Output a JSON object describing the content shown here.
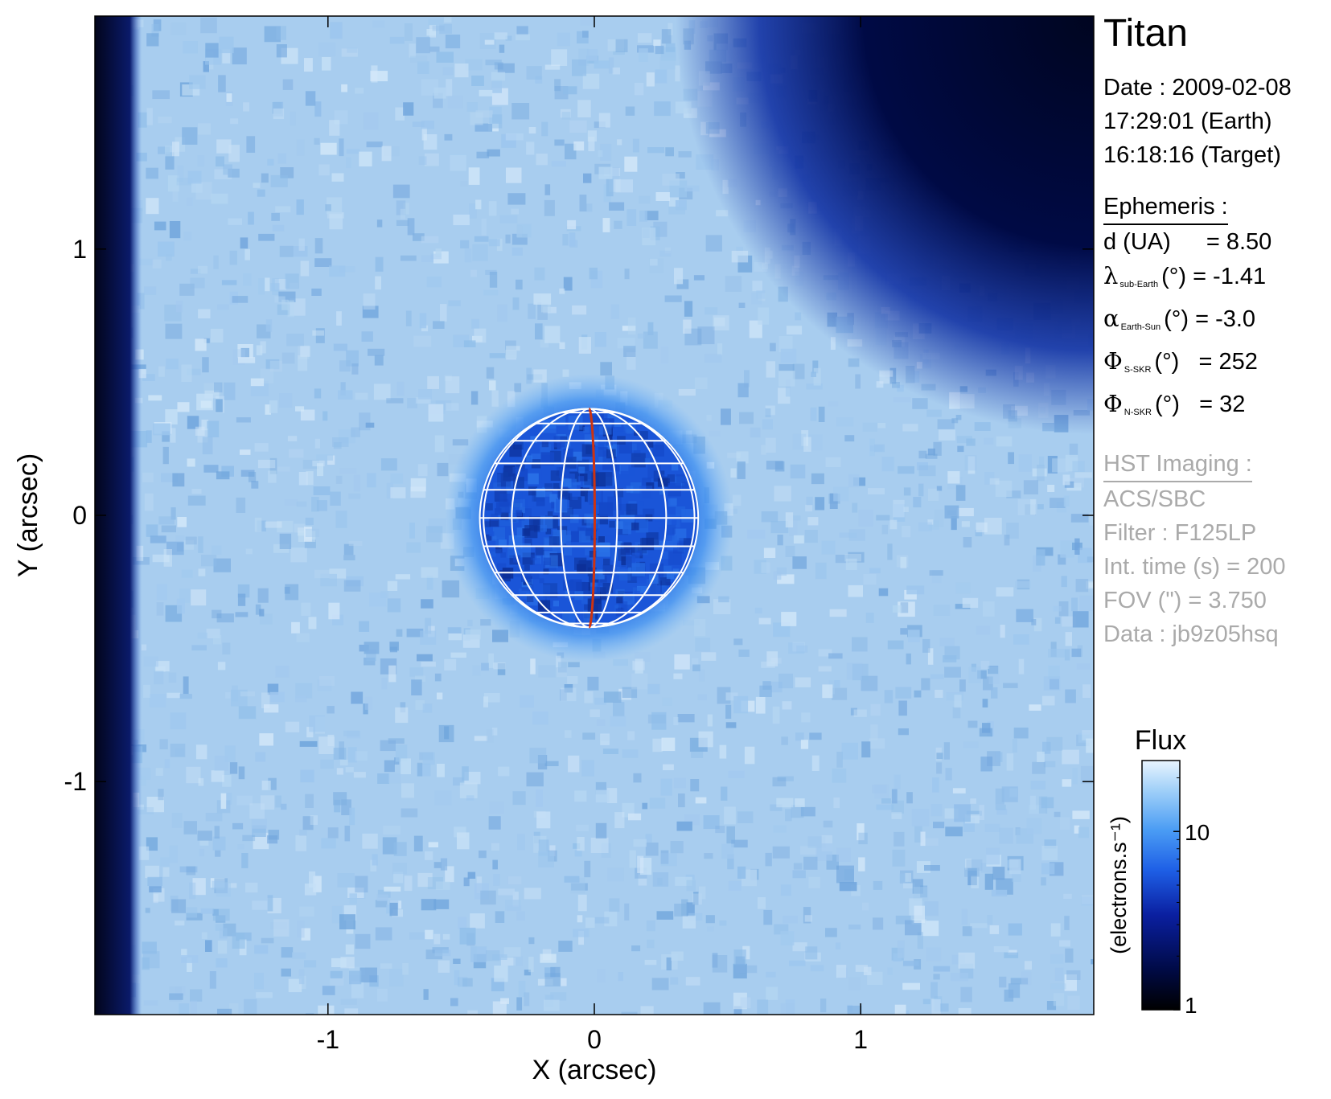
{
  "target": "Titan",
  "date_line": "Date : 2009-02-08",
  "earth_time": "17:29:01 (Earth)",
  "target_time": "16:18:16 (Target)",
  "ephemeris": {
    "heading": "Ephemeris :",
    "d_label": "d (UA)",
    "d_value": "= 8.50",
    "lambda_symbol": "λ",
    "lambda_sub": "sub-Earth",
    "lambda_rest": "(°) = -1.41",
    "alpha_symbol": "α",
    "alpha_sub": "Earth-Sun",
    "alpha_rest": "(°) = -3.0",
    "phi_s_symbol": "Φ",
    "phi_s_sub": "S-SKR",
    "phi_s_rest": "(°)   = 252",
    "phi_n_symbol": "Φ",
    "phi_n_sub": "N-SKR",
    "phi_n_rest": "(°)   = 32"
  },
  "imaging": {
    "heading": "HST Imaging :",
    "instrument": "ACS/SBC",
    "filter": "Filter : F125LP",
    "int_time": "Int. time (s) = 200",
    "fov": "FOV (\") = 3.750",
    "data": "Data : jb9z05hsq"
  },
  "colors": {
    "grid_lines": "#ffffff",
    "central_meridian": "#cc3311",
    "colormap": [
      "#000000",
      "#000a45",
      "#0a1fa0",
      "#1e5fe6",
      "#4a9cf4",
      "#a0d0f8",
      "#e8f4ff"
    ]
  },
  "chart_data": {
    "type": "heatmap",
    "title": "",
    "xlabel": "X (arcsec)",
    "ylabel": "Y (arcsec)",
    "xlim": [
      -1.875,
      1.875
    ],
    "ylim": [
      -1.875,
      1.875
    ],
    "x_ticks": [
      -1,
      0,
      1
    ],
    "y_ticks": [
      -1,
      0,
      1
    ],
    "x_tick_labels": [
      "-1",
      "0",
      "1"
    ],
    "y_tick_labels": [
      "-1",
      "0",
      "1"
    ],
    "grid": false,
    "disk": {
      "center": [
        -0.02,
        -0.01
      ],
      "radius": 0.41,
      "meridian_tilt_deg": 0.5
    },
    "colorbar": {
      "title": "Flux",
      "label": "(electrons.s⁻¹)",
      "scale": "log",
      "range": [
        1,
        25
      ],
      "ticks": [
        1,
        10
      ],
      "tick_labels": [
        "1",
        "10"
      ],
      "position": "right"
    }
  }
}
